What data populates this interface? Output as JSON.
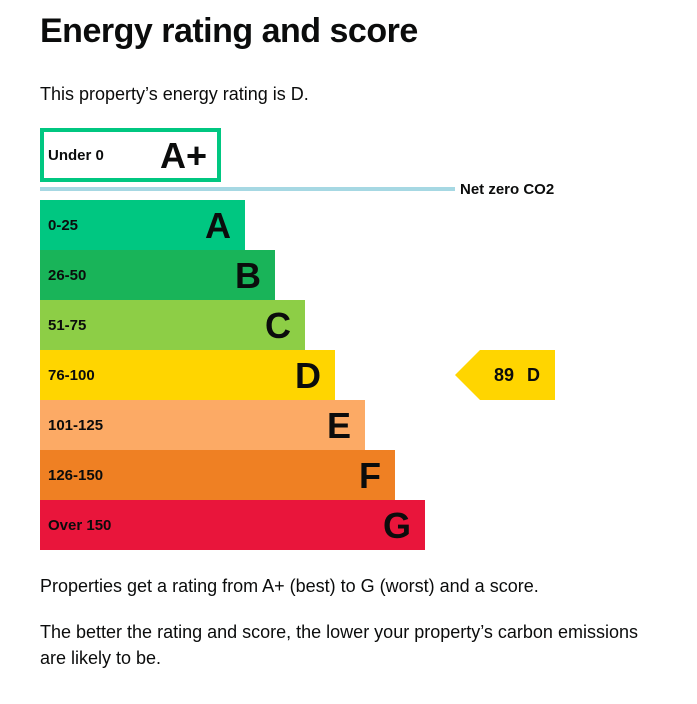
{
  "page": {
    "title": "Energy rating and score",
    "intro": "This property’s energy rating is D.",
    "note_1": "Properties get a rating from A+ (best) to G (worst) and a score.",
    "note_2": "The better the rating and score, the lower your property’s carbon emissions are likely to be."
  },
  "chart_data": {
    "type": "bar",
    "bands": [
      {
        "letter": "A+",
        "range": "Under 0",
        "color": "#00c781",
        "outline_only": true
      },
      {
        "letter": "A",
        "range": "0-25",
        "color": "#00c781"
      },
      {
        "letter": "B",
        "range": "26-50",
        "color": "#19b459"
      },
      {
        "letter": "C",
        "range": "51-75",
        "color": "#8dce46"
      },
      {
        "letter": "D",
        "range": "76-100",
        "color": "#ffd500"
      },
      {
        "letter": "E",
        "range": "101-125",
        "color": "#fcaa65"
      },
      {
        "letter": "F",
        "range": "126-150",
        "color": "#ef8023"
      },
      {
        "letter": "G",
        "range": "Over 150",
        "color": "#e9153b"
      }
    ],
    "net_zero": {
      "label": "Net zero CO2",
      "color": "#a6d8e3"
    },
    "current": {
      "score": 89,
      "letter": "D",
      "band": "D",
      "color": "#ffd500"
    }
  }
}
